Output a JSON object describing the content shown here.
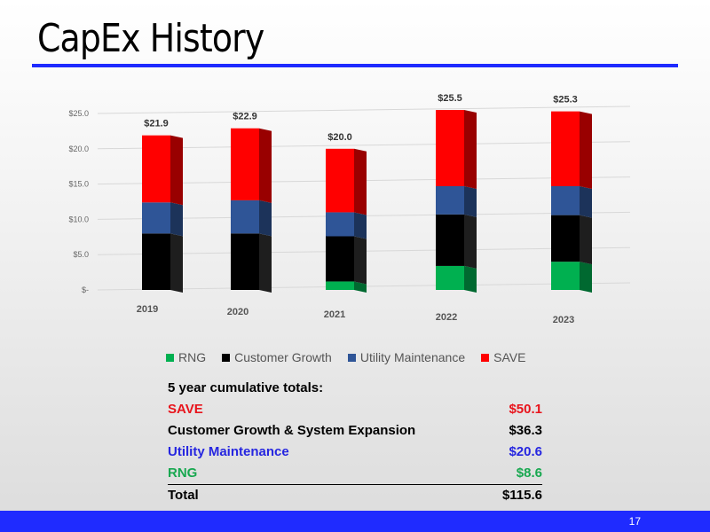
{
  "slide": {
    "title": "CapEx History",
    "page_number": "17"
  },
  "colors": {
    "RNG": "#00b050",
    "Customer Growth": "#000000",
    "Utility Maintenance": "#2f5597",
    "SAVE": "#ff0000",
    "accent": "#1f2bff"
  },
  "chart_data": {
    "type": "bar",
    "stacked": true,
    "categories": [
      "2019",
      "2020",
      "2021",
      "2022",
      "2023"
    ],
    "series": [
      {
        "name": "RNG",
        "values": [
          0,
          0,
          1.2,
          3.4,
          4.0
        ]
      },
      {
        "name": "Customer Growth",
        "values": [
          8.0,
          8.0,
          6.4,
          7.3,
          6.6
        ]
      },
      {
        "name": "Utility Maintenance",
        "values": [
          4.4,
          4.7,
          3.4,
          4.0,
          4.1
        ]
      },
      {
        "name": "SAVE",
        "values": [
          9.5,
          10.2,
          9.0,
          10.8,
          10.6
        ]
      }
    ],
    "total_labels": [
      "$21.9",
      "$22.9",
      "$20.0",
      "$25.5",
      "$25.3"
    ],
    "y_ticks": [
      "$-",
      "$5.0",
      "$10.0",
      "$15.0",
      "$20.0",
      "$25.0"
    ],
    "ylim": [
      0,
      25
    ],
    "grid": true,
    "legend": "bottom"
  },
  "totals": {
    "heading": "5 year cumulative totals:",
    "rows": [
      {
        "label": "SAVE",
        "value": "$50.1",
        "color": "#e8141c"
      },
      {
        "label": "Customer Growth & System Expansion",
        "value": "$36.3",
        "color": "#000000"
      },
      {
        "label": "Utility Maintenance",
        "value": "$20.6",
        "color": "#2626e0"
      },
      {
        "label": "RNG",
        "value": "$8.6",
        "color": "#18a850"
      }
    ],
    "total": {
      "label": "Total",
      "value": "$115.6"
    }
  }
}
